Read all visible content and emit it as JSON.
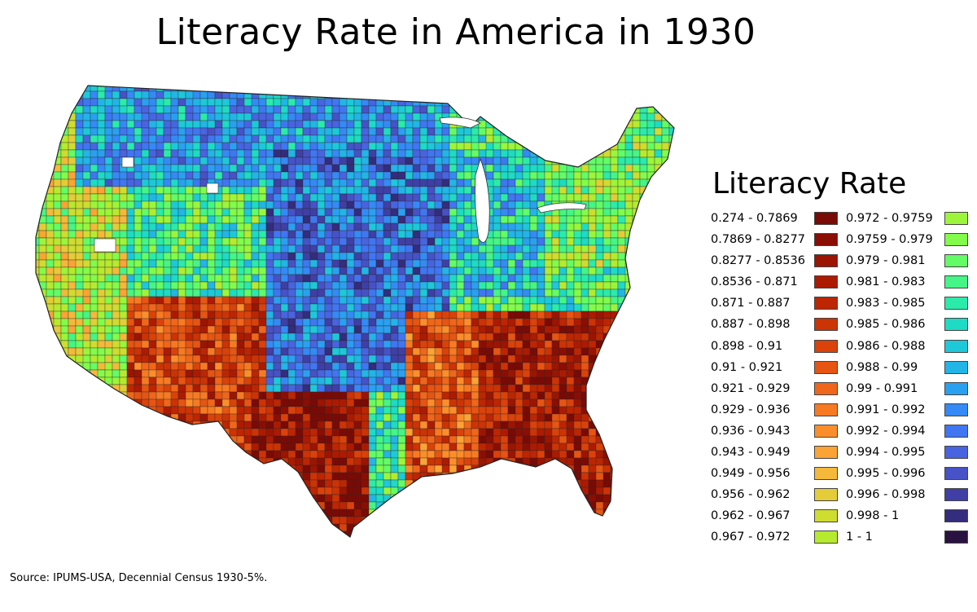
{
  "title": "Literacy Rate in America in 1930",
  "legend": {
    "title": "Literacy Rate",
    "items": [
      {
        "label": "0.274 - 0.7869",
        "color": "#7a0a05"
      },
      {
        "label": "0.7869 - 0.8277",
        "color": "#8a0e04"
      },
      {
        "label": "0.8277 - 0.8536",
        "color": "#9c1402"
      },
      {
        "label": "0.8536 - 0.871",
        "color": "#ad1a02"
      },
      {
        "label": "0.871 - 0.887",
        "color": "#bd2503"
      },
      {
        "label": "0.887 - 0.898",
        "color": "#cc3305"
      },
      {
        "label": "0.898 - 0.91",
        "color": "#da420a"
      },
      {
        "label": "0.91 - 0.921",
        "color": "#e65512"
      },
      {
        "label": "0.921 - 0.929",
        "color": "#f0661a"
      },
      {
        "label": "0.929 - 0.936",
        "color": "#f77a22"
      },
      {
        "label": "0.936 - 0.943",
        "color": "#fb8e2b"
      },
      {
        "label": "0.943 - 0.949",
        "color": "#fba335"
      },
      {
        "label": "0.949 - 0.956",
        "color": "#f4b93b"
      },
      {
        "label": "0.956 - 0.962",
        "color": "#e4cc38"
      },
      {
        "label": "0.962 - 0.967",
        "color": "#cfdc30"
      },
      {
        "label": "0.967 - 0.972",
        "color": "#b6ea2f"
      },
      {
        "label": "0.972 - 0.9759",
        "color": "#9cf53a"
      },
      {
        "label": "0.9759 - 0.979",
        "color": "#82fb4a"
      },
      {
        "label": "0.979 - 0.981",
        "color": "#63fc66"
      },
      {
        "label": "0.981 - 0.983",
        "color": "#45f586"
      },
      {
        "label": "0.983 - 0.985",
        "color": "#2bebab"
      },
      {
        "label": "0.985 - 0.986",
        "color": "#1ddbc4"
      },
      {
        "label": "0.986 - 0.988",
        "color": "#1dc9d8"
      },
      {
        "label": "0.988 - 0.99",
        "color": "#22b5e6"
      },
      {
        "label": "0.99 - 0.991",
        "color": "#2aa0f0"
      },
      {
        "label": "0.991 - 0.992",
        "color": "#358af5"
      },
      {
        "label": "0.992 - 0.994",
        "color": "#4076f2"
      },
      {
        "label": "0.994 - 0.995",
        "color": "#4864e0"
      },
      {
        "label": "0.995 - 0.996",
        "color": "#4652c6"
      },
      {
        "label": "0.996 - 0.998",
        "color": "#3f3fa6"
      },
      {
        "label": "0.998 - 1",
        "color": "#342c7c"
      },
      {
        "label": "1 - 1",
        "color": "#2a1240"
      }
    ]
  },
  "source": "Source: IPUMS-USA, Decennial Census 1930-5%."
}
